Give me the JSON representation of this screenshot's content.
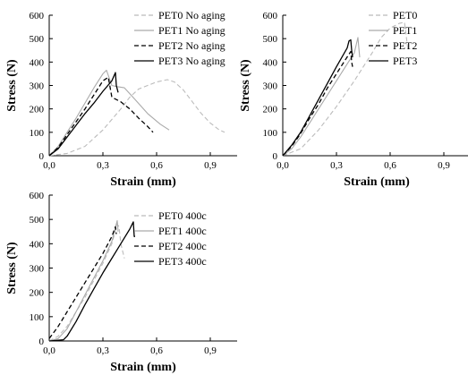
{
  "chart_data": [
    {
      "type": "line",
      "xlabel": "Strain (mm)",
      "ylabel": "Stress (N)",
      "xlim": [
        0,
        1.05
      ],
      "ylim": [
        0,
        600
      ],
      "xticks": [
        "0,0",
        "0,3",
        "0,6",
        "0,9"
      ],
      "xtick_values": [
        0,
        0.3,
        0.6,
        0.9
      ],
      "yticks": [
        "0",
        "100",
        "200",
        "300",
        "400",
        "500",
        "600"
      ],
      "ytick_values": [
        0,
        100,
        200,
        300,
        400,
        500,
        600
      ],
      "legend_position": "top-right",
      "series": [
        {
          "name": "PET0 No aging",
          "style": "dashed",
          "color": "#bbbbbb",
          "x": [
            0.0,
            0.1,
            0.2,
            0.3,
            0.4,
            0.45,
            0.5,
            0.55,
            0.6,
            0.63,
            0.66,
            0.7,
            0.75,
            0.8,
            0.85,
            0.9,
            0.95,
            0.98
          ],
          "y": [
            0,
            10,
            40,
            110,
            200,
            250,
            285,
            300,
            315,
            320,
            325,
            315,
            280,
            230,
            180,
            140,
            110,
            100
          ]
        },
        {
          "name": "PET1 No aging",
          "style": "solid",
          "color": "#aaaaaa",
          "x": [
            0.0,
            0.05,
            0.1,
            0.15,
            0.2,
            0.25,
            0.3,
            0.32,
            0.35,
            0.38,
            0.42,
            0.48,
            0.55,
            0.62,
            0.67
          ],
          "y": [
            0,
            40,
            100,
            160,
            225,
            290,
            350,
            365,
            300,
            295,
            290,
            240,
            180,
            135,
            110
          ]
        },
        {
          "name": "PET2 No aging",
          "style": "dashed",
          "color": "#000000",
          "x": [
            0.0,
            0.05,
            0.1,
            0.15,
            0.2,
            0.25,
            0.3,
            0.33,
            0.35,
            0.4,
            0.45,
            0.5,
            0.55,
            0.58
          ],
          "y": [
            0,
            35,
            90,
            145,
            200,
            260,
            320,
            335,
            250,
            230,
            200,
            160,
            125,
            100
          ]
        },
        {
          "name": "PET3 No aging",
          "style": "solid",
          "color": "#000000",
          "x": [
            0.0,
            0.05,
            0.1,
            0.15,
            0.2,
            0.25,
            0.3,
            0.35,
            0.37,
            0.375,
            0.385
          ],
          "y": [
            0,
            30,
            80,
            130,
            180,
            225,
            275,
            320,
            355,
            300,
            270
          ]
        }
      ]
    },
    {
      "type": "line",
      "xlabel": "Strain (mm)",
      "ylabel": "Stress (N)",
      "xlim": [
        0,
        1.05
      ],
      "ylim": [
        0,
        600
      ],
      "xticks": [
        "0,0",
        "0,3",
        "0,6",
        "0,9"
      ],
      "xtick_values": [
        0,
        0.3,
        0.6,
        0.9
      ],
      "yticks": [
        "0",
        "100",
        "200",
        "300",
        "400",
        "500",
        "600"
      ],
      "ytick_values": [
        0,
        100,
        200,
        300,
        400,
        500,
        600
      ],
      "legend_position": "top-right",
      "series": [
        {
          "name": "PET0",
          "style": "dashed",
          "color": "#bbbbbb",
          "x": [
            0.0,
            0.1,
            0.2,
            0.3,
            0.4,
            0.5,
            0.55,
            0.6,
            0.65,
            0.68,
            0.69,
            0.7
          ],
          "y": [
            0,
            30,
            110,
            210,
            320,
            440,
            505,
            545,
            565,
            570,
            510,
            450
          ]
        },
        {
          "name": "PET1",
          "style": "solid",
          "color": "#aaaaaa",
          "x": [
            0.0,
            0.05,
            0.1,
            0.15,
            0.2,
            0.25,
            0.3,
            0.35,
            0.4,
            0.42,
            0.425,
            0.43
          ],
          "y": [
            0,
            30,
            80,
            140,
            200,
            260,
            320,
            380,
            440,
            505,
            460,
            420
          ]
        },
        {
          "name": "PET2",
          "style": "dashed",
          "color": "#000000",
          "x": [
            0.0,
            0.05,
            0.1,
            0.15,
            0.2,
            0.25,
            0.3,
            0.35,
            0.38,
            0.385,
            0.39
          ],
          "y": [
            0,
            40,
            95,
            160,
            220,
            290,
            350,
            410,
            445,
            400,
            380
          ]
        },
        {
          "name": "PET3",
          "style": "solid",
          "color": "#000000",
          "x": [
            0.0,
            0.05,
            0.1,
            0.15,
            0.2,
            0.25,
            0.3,
            0.33,
            0.36,
            0.37,
            0.38,
            0.385,
            0.39
          ],
          "y": [
            0,
            45,
            100,
            170,
            240,
            310,
            380,
            420,
            460,
            490,
            495,
            450,
            420
          ]
        }
      ]
    },
    {
      "type": "line",
      "xlabel": "Strain (mm)",
      "ylabel": "Stress (N)",
      "xlim": [
        0,
        1.05
      ],
      "ylim": [
        0,
        600
      ],
      "xticks": [
        "0,0",
        "0,3",
        "0,6",
        "0,9"
      ],
      "xtick_values": [
        0,
        0.3,
        0.6,
        0.9
      ],
      "yticks": [
        "0",
        "100",
        "200",
        "300",
        "400",
        "500",
        "600"
      ],
      "ytick_values": [
        0,
        100,
        200,
        300,
        400,
        500,
        600
      ],
      "legend_position": "top-right",
      "series": [
        {
          "name": "PET0 400c",
          "style": "dashed",
          "color": "#bbbbbb",
          "x": [
            0.0,
            0.05,
            0.1,
            0.15,
            0.2,
            0.25,
            0.3,
            0.35,
            0.38,
            0.39,
            0.4,
            0.42
          ],
          "y": [
            0,
            20,
            60,
            120,
            180,
            250,
            320,
            400,
            480,
            470,
            400,
            340
          ]
        },
        {
          "name": "PET1 400c",
          "style": "solid",
          "color": "#aaaaaa",
          "x": [
            0.0,
            0.05,
            0.1,
            0.15,
            0.2,
            0.25,
            0.3,
            0.35,
            0.38,
            0.385
          ],
          "y": [
            0,
            10,
            50,
            120,
            190,
            260,
            330,
            410,
            495,
            450
          ]
        },
        {
          "name": "PET2 400c",
          "style": "dashed",
          "color": "#000000",
          "x": [
            0.0,
            0.05,
            0.1,
            0.15,
            0.2,
            0.25,
            0.3,
            0.35,
            0.37,
            0.375
          ],
          "y": [
            10,
            60,
            120,
            180,
            240,
            300,
            360,
            430,
            470,
            440
          ]
        },
        {
          "name": "PET3 400c",
          "style": "solid",
          "color": "#000000",
          "x": [
            0.0,
            0.08,
            0.1,
            0.15,
            0.2,
            0.25,
            0.3,
            0.35,
            0.4,
            0.45,
            0.47,
            0.475,
            0.48
          ],
          "y": [
            0,
            5,
            20,
            80,
            150,
            215,
            280,
            340,
            400,
            460,
            490,
            430,
            430
          ]
        }
      ]
    }
  ]
}
